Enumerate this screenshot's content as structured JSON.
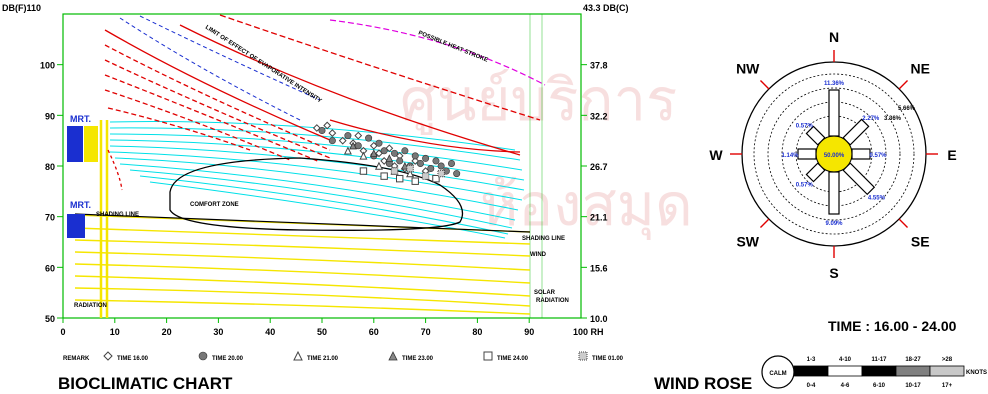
{
  "chart_data": [
    {
      "type": "scatter",
      "title": "BIOCLIMATIC CHART",
      "x_axis": {
        "range": [
          0,
          100
        ],
        "ticks": [
          0,
          10,
          20,
          30,
          40,
          50,
          60,
          70,
          80,
          90
        ],
        "end_label": "100 RH"
      },
      "y_axis_left": {
        "range": [
          50,
          110
        ],
        "ticks": [
          {
            "v": 50,
            "label": "50"
          },
          {
            "v": 60,
            "label": "60"
          },
          {
            "v": 70,
            "label": "70"
          },
          {
            "v": 80,
            "label": "80"
          },
          {
            "v": 90,
            "label": "90"
          },
          {
            "v": 100,
            "label": "100"
          }
        ],
        "top_label": "DB(F)110"
      },
      "y_axis_right": {
        "ticks": [
          {
            "v": 50,
            "label": "10.0"
          },
          {
            "v": 60,
            "label": "15.6"
          },
          {
            "v": 70,
            "label": "21.1"
          },
          {
            "v": 80,
            "label": "26.7"
          },
          {
            "v": 90,
            "label": "32.2"
          },
          {
            "v": 100,
            "label": "37.8"
          }
        ],
        "top_label": "43.3 DB(C)"
      },
      "annotations": {
        "comfort_zone": "COMFORT ZONE",
        "shading_line_left": "SHADING LINE",
        "shading_line_right": "SHADING LINE",
        "mrt_top": "MRT.",
        "mrt_bottom": "MRT.",
        "radiation": "RADIATION",
        "solar_radiation_label": "SOLAR",
        "solar_radiation_value": "RADIATION",
        "evaporative_limit": "LIMIT OF EFFECT OF EVAPORATIVE INTENSITY",
        "possible_heat_stroke": "POSSIBLE HEAT STROKE",
        "wind_label": "WIND"
      },
      "series": [
        {
          "name": "TIME 16.00",
          "symbol": "diamond",
          "points": [
            [
              49,
              87.5
            ],
            [
              51,
              88
            ],
            [
              52,
              86.5
            ],
            [
              54,
              85
            ],
            [
              56,
              84.5
            ],
            [
              57,
              86
            ],
            [
              58,
              83
            ],
            [
              60,
              84
            ],
            [
              61,
              82.5
            ],
            [
              62,
              81
            ],
            [
              63,
              83.5
            ],
            [
              64,
              80
            ],
            [
              65,
              82
            ],
            [
              66,
              79.5
            ],
            [
              68,
              81
            ],
            [
              70,
              79
            ]
          ]
        },
        {
          "name": "TIME 20.00",
          "symbol": "filled-circle",
          "points": [
            [
              50,
              87
            ],
            [
              52,
              85
            ],
            [
              55,
              86
            ],
            [
              57,
              84
            ],
            [
              59,
              85.5
            ],
            [
              60,
              82
            ],
            [
              61,
              84.5
            ],
            [
              62,
              83
            ],
            [
              63,
              80.5
            ],
            [
              64,
              82.5
            ],
            [
              65,
              81
            ],
            [
              66,
              83
            ],
            [
              67,
              80
            ],
            [
              68,
              82
            ],
            [
              69,
              80.5
            ],
            [
              70,
              81.5
            ],
            [
              71,
              79.5
            ],
            [
              72,
              81
            ],
            [
              73,
              80
            ],
            [
              74,
              79
            ],
            [
              75,
              80.5
            ],
            [
              76,
              78.5
            ]
          ]
        },
        {
          "name": "TIME 21.00",
          "symbol": "triangle",
          "points": [
            [
              55,
              83
            ],
            [
              58,
              82
            ],
            [
              61,
              80
            ],
            [
              64,
              79
            ],
            [
              67,
              78.5
            ]
          ]
        },
        {
          "name": "TIME 23.00",
          "symbol": "filled-triangle",
          "points": [
            [
              56,
              84
            ],
            [
              60,
              82.5
            ],
            [
              63,
              81.5
            ],
            [
              66,
              80
            ]
          ]
        },
        {
          "name": "TIME 24.00",
          "symbol": "square",
          "points": [
            [
              58,
              79
            ],
            [
              62,
              78
            ],
            [
              65,
              77.5
            ],
            [
              68,
              77
            ],
            [
              72,
              77.5
            ]
          ]
        },
        {
          "name": "TIME 01.00",
          "symbol": "dotted-square",
          "points": [
            [
              64,
              79
            ],
            [
              67,
              79.5
            ],
            [
              70,
              78
            ],
            [
              73,
              78.5
            ]
          ]
        }
      ],
      "legend": {
        "prefix": "REMARK",
        "placement": "bottom",
        "items": [
          {
            "symbol": "diamond",
            "text": "TIME 16.00"
          },
          {
            "symbol": "filled-circle",
            "text": "TIME 20.00"
          },
          {
            "symbol": "triangle",
            "text": "TIME 21.00"
          },
          {
            "symbol": "filled-triangle",
            "text": "TIME 23.00"
          },
          {
            "symbol": "square",
            "text": "TIME 24.00"
          },
          {
            "symbol": "dotted-square",
            "text": "TIME 01.00"
          }
        ]
      }
    },
    {
      "type": "wind-rose",
      "title": "WIND ROSE",
      "time_label": "TIME : 16.00 - 24.00",
      "directions": [
        "N",
        "NE",
        "E",
        "SE",
        "S",
        "SW",
        "W",
        "NW"
      ],
      "calm": "50.00%",
      "petals": [
        {
          "dir": "N",
          "value": "11.36%"
        },
        {
          "dir": "NE",
          "value": "2.27%"
        },
        {
          "dir": "E",
          "value": "0.57%"
        },
        {
          "dir": "SE",
          "value": "4.55%"
        },
        {
          "dir": "S",
          "value": "9.09%"
        },
        {
          "dir": "SW",
          "value": "0.57%"
        },
        {
          "dir": "W",
          "value": "1.14%"
        },
        {
          "dir": "NW",
          "value": "0.57%"
        }
      ],
      "outer_labels": [
        "3.36%",
        "5.66%"
      ],
      "speed_scale": {
        "calm_label": "CALM",
        "top_ranges": [
          "1-3",
          "4-10",
          "11-17",
          "18-27",
          ">28"
        ],
        "bottom_ranges": [
          "0-4",
          "4-6",
          "6-10",
          "10-17",
          "17+"
        ],
        "unit": "KNOTS",
        "colors": [
          "#000000",
          "#ffffff",
          "#000000",
          "#808080",
          "#c8c8c8"
        ]
      }
    }
  ],
  "colors": {
    "frame": "#00bb00",
    "comfort": "#000000",
    "humidity_lines": "#00e0e8",
    "evap_lines": "#e00000",
    "dew_lines": "#f5e600",
    "blue_text": "#1a2fd0",
    "magenta": "#e000e0",
    "points": "#666666",
    "watermark": "#f2c6c6"
  },
  "watermark": {
    "line1": "ศูนย์บริการ",
    "line2": "ห้องสมุด"
  }
}
